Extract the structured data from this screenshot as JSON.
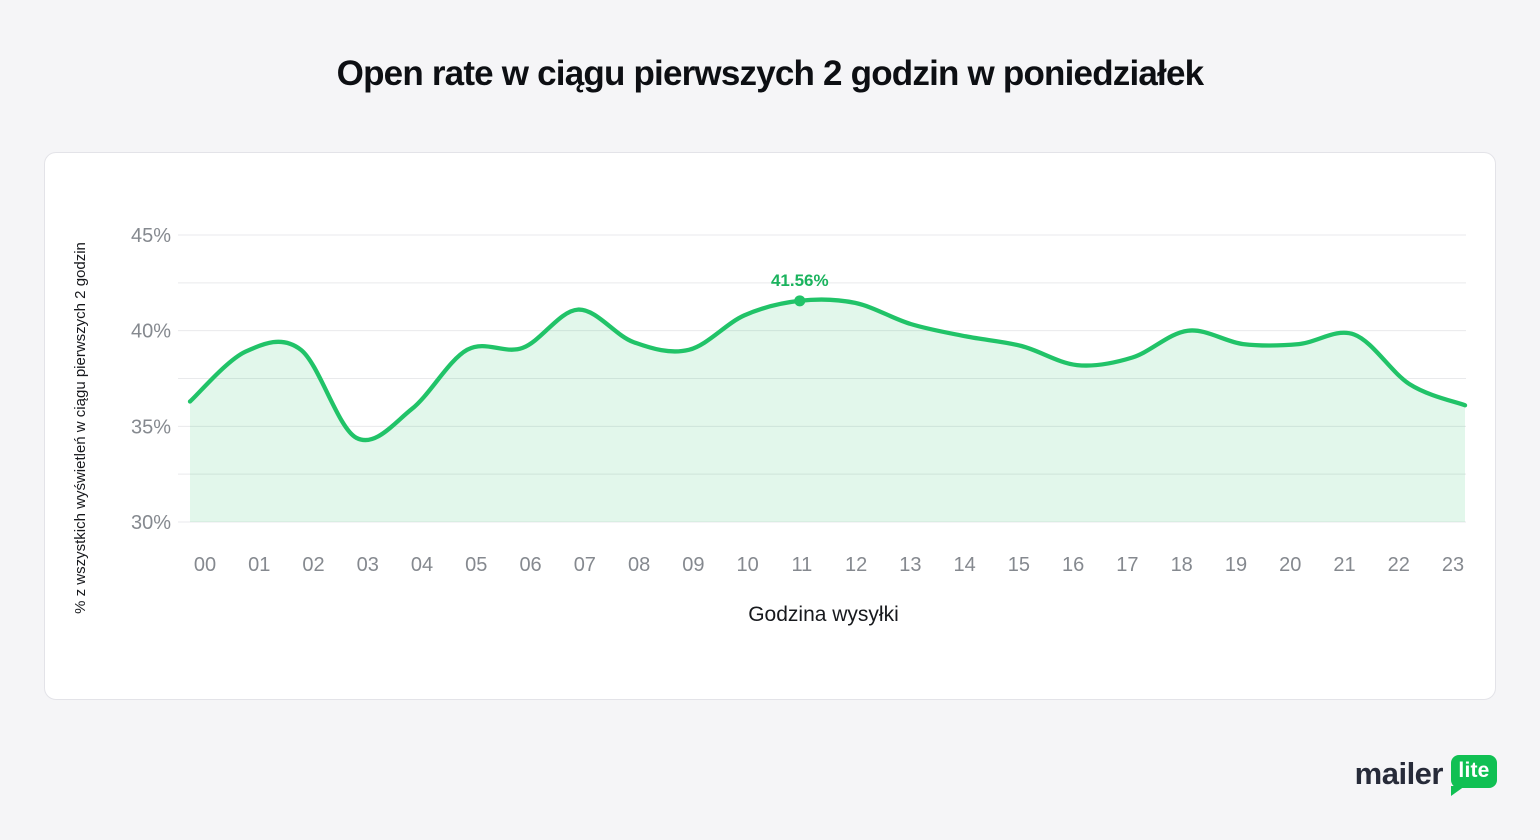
{
  "header": {
    "title": "Open rate w ciągu pierwszych 2 godzin w poniedziałek"
  },
  "chart_data": {
    "type": "area",
    "title": "Open rate w ciągu pierwszych 2 godzin w poniedziałek",
    "xlabel": "Godzina wysyłki",
    "ylabel": "% z wszystkich wyświetleń w ciągu pierwszych 2 godzin",
    "x_categories": [
      "00",
      "01",
      "02",
      "03",
      "04",
      "05",
      "06",
      "07",
      "08",
      "09",
      "10",
      "11",
      "12",
      "13",
      "14",
      "15",
      "16",
      "17",
      "18",
      "19",
      "20",
      "21",
      "22",
      "23"
    ],
    "values": [
      36.3,
      38.9,
      39.0,
      34.4,
      35.9,
      39.0,
      39.1,
      41.1,
      39.4,
      39.0,
      40.8,
      41.56,
      41.45,
      40.35,
      39.7,
      39.2,
      38.2,
      38.6,
      40.0,
      39.3,
      39.3,
      39.8,
      37.2,
      36.1
    ],
    "ylim": [
      30,
      45
    ],
    "gridline_step": 2.5,
    "grid": "horizontal-only",
    "y_ticks": [
      {
        "value": 45,
        "label": "45%"
      },
      {
        "value": 40,
        "label": "40%"
      },
      {
        "value": 35,
        "label": "35%"
      },
      {
        "value": 30,
        "label": "30%"
      }
    ],
    "annotation": {
      "hour_index": 11,
      "value": 41.56,
      "label": "41.56%"
    },
    "legend": "none",
    "colors": {
      "line": "#21c368",
      "fill": "rgba(33,195,104,0.13)",
      "annotation": "#1bb35e",
      "marker": "#21c368",
      "tick_text": "#85898f",
      "gridline": "#e9eaec"
    }
  },
  "logo": {
    "wordmark": "mailer",
    "badge_label": "lite",
    "badge_color": "#10c053",
    "wordmark_color": "#272b39"
  }
}
